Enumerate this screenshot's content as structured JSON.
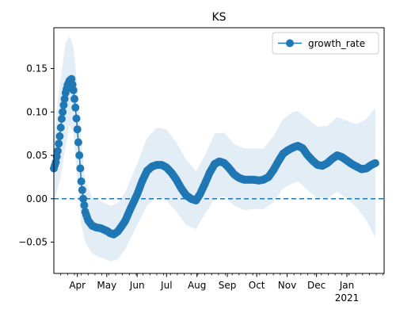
{
  "chart_data": {
    "type": "line",
    "title": "KS",
    "xlabel": "",
    "ylabel": "",
    "x_range": [
      "2020-03-08",
      "2021-02-08"
    ],
    "ylim": [
      -0.086,
      0.197
    ],
    "x_ticks": [
      {
        "date": "2020-04-01",
        "label": "Apr"
      },
      {
        "date": "2020-05-01",
        "label": "May"
      },
      {
        "date": "2020-06-01",
        "label": "Jun"
      },
      {
        "date": "2020-07-01",
        "label": "Jul"
      },
      {
        "date": "2020-08-01",
        "label": "Aug"
      },
      {
        "date": "2020-09-01",
        "label": "Sep"
      },
      {
        "date": "2020-10-01",
        "label": "Oct"
      },
      {
        "date": "2020-11-01",
        "label": "Nov"
      },
      {
        "date": "2020-12-01",
        "label": "Dec"
      },
      {
        "date": "2021-01-01",
        "label": "Jan"
      }
    ],
    "year_label": "2021",
    "y_ticks": [
      -0.05,
      0.0,
      0.05,
      0.1,
      0.15
    ],
    "y_tick_labels": [
      "−0.05",
      "0.00",
      "0.05",
      "0.10",
      "0.15"
    ],
    "reference_line": {
      "y": 0.0,
      "style": "dashed",
      "color": "#1f77b4"
    },
    "legend": {
      "position": "top-right",
      "entries": [
        "growth_rate"
      ]
    },
    "colors": {
      "series": "#1f77b4",
      "band": "#dce8f4"
    },
    "grid": false,
    "series": [
      {
        "name": "growth_rate",
        "marker": "circle",
        "points": [
          [
            "2020-03-08",
            0.035
          ],
          [
            "2020-03-10",
            0.042
          ],
          [
            "2020-03-12",
            0.055
          ],
          [
            "2020-03-14",
            0.072
          ],
          [
            "2020-03-16",
            0.092
          ],
          [
            "2020-03-18",
            0.108
          ],
          [
            "2020-03-20",
            0.122
          ],
          [
            "2020-03-22",
            0.131
          ],
          [
            "2020-03-24",
            0.136
          ],
          [
            "2020-03-26",
            0.138
          ],
          [
            "2020-03-28",
            0.125
          ],
          [
            "2020-03-30",
            0.105
          ],
          [
            "2020-04-01",
            0.08
          ],
          [
            "2020-04-03",
            0.05
          ],
          [
            "2020-04-05",
            0.02
          ],
          [
            "2020-04-07",
            0.0
          ],
          [
            "2020-04-09",
            -0.015
          ],
          [
            "2020-04-12",
            -0.025
          ],
          [
            "2020-04-16",
            -0.031
          ],
          [
            "2020-04-20",
            -0.033
          ],
          [
            "2020-04-25",
            -0.034
          ],
          [
            "2020-05-01",
            -0.037
          ],
          [
            "2020-05-05",
            -0.04
          ],
          [
            "2020-05-08",
            -0.041
          ],
          [
            "2020-05-12",
            -0.038
          ],
          [
            "2020-05-16",
            -0.032
          ],
          [
            "2020-05-20",
            -0.025
          ],
          [
            "2020-05-25",
            -0.012
          ],
          [
            "2020-06-01",
            0.005
          ],
          [
            "2020-06-06",
            0.02
          ],
          [
            "2020-06-11",
            0.032
          ],
          [
            "2020-06-16",
            0.037
          ],
          [
            "2020-06-21",
            0.039
          ],
          [
            "2020-06-26",
            0.039
          ],
          [
            "2020-07-01",
            0.036
          ],
          [
            "2020-07-06",
            0.03
          ],
          [
            "2020-07-11",
            0.022
          ],
          [
            "2020-07-16",
            0.012
          ],
          [
            "2020-07-21",
            0.004
          ],
          [
            "2020-07-26",
            0.0
          ],
          [
            "2020-07-31",
            -0.002
          ],
          [
            "2020-08-04",
            0.005
          ],
          [
            "2020-08-09",
            0.017
          ],
          [
            "2020-08-14",
            0.03
          ],
          [
            "2020-08-19",
            0.04
          ],
          [
            "2020-08-24",
            0.043
          ],
          [
            "2020-08-29",
            0.041
          ],
          [
            "2020-09-03",
            0.035
          ],
          [
            "2020-09-08",
            0.028
          ],
          [
            "2020-09-13",
            0.024
          ],
          [
            "2020-09-18",
            0.022
          ],
          [
            "2020-09-23",
            0.022
          ],
          [
            "2020-09-28",
            0.022
          ],
          [
            "2020-10-03",
            0.021
          ],
          [
            "2020-10-08",
            0.022
          ],
          [
            "2020-10-13",
            0.025
          ],
          [
            "2020-10-18",
            0.033
          ],
          [
            "2020-10-23",
            0.043
          ],
          [
            "2020-10-28",
            0.052
          ],
          [
            "2020-11-02",
            0.056
          ],
          [
            "2020-11-07",
            0.059
          ],
          [
            "2020-11-12",
            0.061
          ],
          [
            "2020-11-17",
            0.058
          ],
          [
            "2020-11-22",
            0.05
          ],
          [
            "2020-11-27",
            0.044
          ],
          [
            "2020-12-02",
            0.039
          ],
          [
            "2020-12-07",
            0.038
          ],
          [
            "2020-12-12",
            0.041
          ],
          [
            "2020-12-17",
            0.046
          ],
          [
            "2020-12-22",
            0.05
          ],
          [
            "2020-12-27",
            0.048
          ],
          [
            "2021-01-01",
            0.044
          ],
          [
            "2021-01-06",
            0.04
          ],
          [
            "2021-01-11",
            0.037
          ],
          [
            "2021-01-16",
            0.034
          ],
          [
            "2021-01-21",
            0.035
          ],
          [
            "2021-01-26",
            0.039
          ],
          [
            "2021-01-30",
            0.041
          ]
        ]
      }
    ],
    "confidence_band": [
      [
        "2020-03-08",
        -0.005,
        0.07
      ],
      [
        "2020-03-14",
        0.02,
        0.13
      ],
      [
        "2020-03-20",
        0.06,
        0.18
      ],
      [
        "2020-03-24",
        0.085,
        0.187
      ],
      [
        "2020-03-28",
        0.075,
        0.175
      ],
      [
        "2020-04-01",
        0.02,
        0.13
      ],
      [
        "2020-04-05",
        -0.03,
        0.065
      ],
      [
        "2020-04-09",
        -0.05,
        0.02
      ],
      [
        "2020-04-16",
        -0.063,
        0.002
      ],
      [
        "2020-04-25",
        -0.068,
        -0.003
      ],
      [
        "2020-05-05",
        -0.072,
        -0.008
      ],
      [
        "2020-05-12",
        -0.07,
        -0.005
      ],
      [
        "2020-05-20",
        -0.058,
        0.008
      ],
      [
        "2020-06-01",
        -0.03,
        0.04
      ],
      [
        "2020-06-11",
        -0.008,
        0.07
      ],
      [
        "2020-06-21",
        0.002,
        0.082
      ],
      [
        "2020-07-01",
        -0.002,
        0.08
      ],
      [
        "2020-07-11",
        -0.015,
        0.065
      ],
      [
        "2020-07-21",
        -0.03,
        0.045
      ],
      [
        "2020-07-31",
        -0.035,
        0.032
      ],
      [
        "2020-08-09",
        -0.018,
        0.05
      ],
      [
        "2020-08-19",
        0.0,
        0.075
      ],
      [
        "2020-08-29",
        0.003,
        0.076
      ],
      [
        "2020-09-08",
        -0.008,
        0.063
      ],
      [
        "2020-09-18",
        -0.013,
        0.058
      ],
      [
        "2020-09-28",
        -0.012,
        0.058
      ],
      [
        "2020-10-08",
        -0.012,
        0.058
      ],
      [
        "2020-10-18",
        -0.004,
        0.072
      ],
      [
        "2020-10-28",
        0.012,
        0.092
      ],
      [
        "2020-11-07",
        0.018,
        0.1
      ],
      [
        "2020-11-12",
        0.02,
        0.101
      ],
      [
        "2020-11-22",
        0.01,
        0.092
      ],
      [
        "2020-12-02",
        0.0,
        0.083
      ],
      [
        "2020-12-12",
        0.0,
        0.084
      ],
      [
        "2020-12-22",
        0.008,
        0.094
      ],
      [
        "2021-01-01",
        0.0,
        0.09
      ],
      [
        "2021-01-11",
        -0.01,
        0.086
      ],
      [
        "2021-01-21",
        -0.025,
        0.092
      ],
      [
        "2021-01-30",
        -0.045,
        0.105
      ]
    ]
  }
}
